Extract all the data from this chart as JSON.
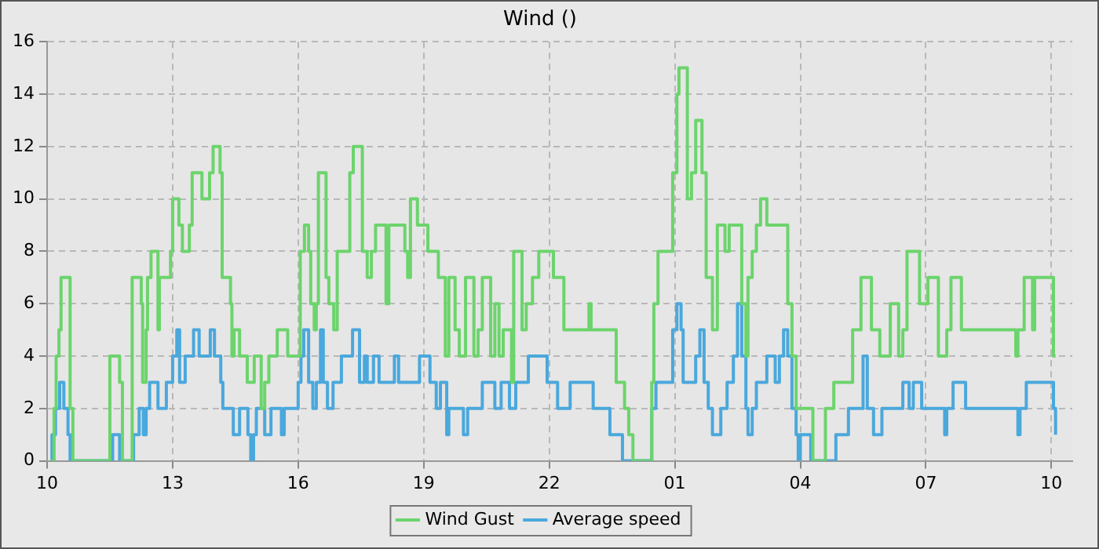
{
  "chart_data": {
    "type": "step",
    "title": "Wind ()",
    "xlim": [
      "--01-01T10:00",
      "--01-02T10:30"
    ],
    "xticks": [
      {
        "value": "--01-01T10:00",
        "label": "10"
      },
      {
        "value": "--01-01T13:00",
        "label": "13"
      },
      {
        "value": "--01-01T16:00",
        "label": "16"
      },
      {
        "value": "--01-01T19:00",
        "label": "19"
      },
      {
        "value": "--01-01T22:00",
        "label": "22"
      },
      {
        "value": "--01-02T01:00",
        "label": "01"
      },
      {
        "value": "--01-02T04:00",
        "label": "04"
      },
      {
        "value": "--01-02T07:00",
        "label": "07"
      },
      {
        "value": "--01-02T10:00",
        "label": "10"
      }
    ],
    "ylim": [
      0,
      16
    ],
    "yticks": [
      0,
      2,
      4,
      6,
      8,
      10,
      12,
      14,
      16
    ],
    "grid": true,
    "legend": "bottom",
    "marker": "none",
    "line_style": "solid",
    "series": [
      {
        "name": "Wind Gust",
        "color": "#6cd46c",
        "x": [
          "--01-01T10:05",
          "--01-01T10:10",
          "--01-01T10:13",
          "--01-01T10:17",
          "--01-01T10:20",
          "--01-01T10:33",
          "--01-01T10:37",
          "--01-01T11:30",
          "--01-01T11:44",
          "--01-01T11:48",
          "--01-01T12:02",
          "--01-01T12:15",
          "--01-01T12:17",
          "--01-01T12:22",
          "--01-01T12:24",
          "--01-01T12:29",
          "--01-01T12:39",
          "--01-01T12:41",
          "--01-01T12:57",
          "--01-01T13:00",
          "--01-01T13:09",
          "--01-01T13:14",
          "--01-01T13:24",
          "--01-01T13:28",
          "--01-01T13:42",
          "--01-01T13:53",
          "--01-01T13:58",
          "--01-01T14:08",
          "--01-01T14:11",
          "--01-01T14:23",
          "--01-01T14:25",
          "--01-01T14:28",
          "--01-01T14:36",
          "--01-01T14:47",
          "--01-01T14:57",
          "--01-01T15:07",
          "--01-01T15:12",
          "--01-01T15:18",
          "--01-01T15:30",
          "--01-01T15:45",
          "--01-01T16:03",
          "--01-01T16:09",
          "--01-01T16:15",
          "--01-01T16:18",
          "--01-01T16:23",
          "--01-01T16:26",
          "--01-01T16:29",
          "--01-01T16:40",
          "--01-01T16:44",
          "--01-01T16:51",
          "--01-01T16:56",
          "--01-01T17:14",
          "--01-01T17:19",
          "--01-01T17:32",
          "--01-01T17:39",
          "--01-01T17:45",
          "--01-01T17:51",
          "--01-01T18:06",
          "--01-01T18:10",
          "--01-01T18:33",
          "--01-01T18:37",
          "--01-01T18:41",
          "--01-01T18:51",
          "--01-01T19:06",
          "--01-01T19:21",
          "--01-01T19:31",
          "--01-01T19:36",
          "--01-01T19:45",
          "--01-01T19:51",
          "--01-01T20:00",
          "--01-01T20:12",
          "--01-01T20:18",
          "--01-01T20:24",
          "--01-01T20:36",
          "--01-01T20:42",
          "--01-01T20:48",
          "--01-01T20:54",
          "--01-01T21:06",
          "--01-01T21:09",
          "--01-01T21:21",
          "--01-01T21:27",
          "--01-01T21:36",
          "--01-01T21:45",
          "--01-01T22:06",
          "--01-01T22:21",
          "--01-01T22:57",
          "--01-01T23:00",
          "--01-01T23:36",
          "--01-01T23:48",
          "--01-01T23:54",
          "--01-02T00:00",
          "--01-02T00:27",
          "--01-02T00:30",
          "--01-02T00:36",
          "--01-02T00:57",
          "--01-02T01:03",
          "--01-02T01:06",
          "--01-02T01:18",
          "--01-02T01:24",
          "--01-02T01:30",
          "--01-02T01:39",
          "--01-02T01:45",
          "--01-02T01:54",
          "--01-02T02:01",
          "--01-02T02:12",
          "--01-02T02:18",
          "--01-02T02:36",
          "--01-02T02:42",
          "--01-02T02:45",
          "--01-02T02:51",
          "--01-02T02:57",
          "--01-02T03:03",
          "--01-02T03:12",
          "--01-02T03:42",
          "--01-02T03:48",
          "--01-02T03:54",
          "--01-02T04:18",
          "--01-02T04:36",
          "--01-02T04:48",
          "--01-02T05:15",
          "--01-02T05:27",
          "--01-02T05:42",
          "--01-02T05:54",
          "--01-02T06:09",
          "--01-02T06:21",
          "--01-02T06:27",
          "--01-02T06:33",
          "--01-02T06:51",
          "--01-02T07:03",
          "--01-02T07:18",
          "--01-02T07:30",
          "--01-02T07:36",
          "--01-02T07:51",
          "--01-02T09:09",
          "--01-02T09:12",
          "--01-02T09:21",
          "--01-02T09:33",
          "--01-02T09:36",
          "--01-02T10:03",
          "--01-02T10:06"
        ],
        "values": [
          0,
          2,
          4,
          5,
          7,
          2,
          0,
          4,
          3,
          0,
          7,
          6,
          3,
          5,
          7,
          8,
          5,
          7,
          8,
          10,
          9,
          8,
          9,
          11,
          10,
          11,
          12,
          11,
          7,
          6,
          4,
          5,
          4,
          3,
          4,
          2,
          3,
          4,
          5,
          4,
          8,
          9,
          8,
          6,
          5,
          6,
          11,
          7,
          6,
          5,
          8,
          11,
          12,
          8,
          7,
          8,
          9,
          6,
          9,
          8,
          7,
          10,
          9,
          8,
          7,
          4,
          7,
          5,
          4,
          7,
          4,
          5,
          7,
          4,
          6,
          4,
          5,
          3,
          8,
          5,
          6,
          7,
          8,
          7,
          5,
          6,
          5,
          3,
          2,
          1,
          0,
          3,
          6,
          8,
          11,
          14,
          15,
          10,
          11,
          13,
          11,
          7,
          5,
          9,
          8,
          9,
          6,
          4,
          7,
          8,
          9,
          10,
          9,
          6,
          4,
          2,
          0,
          2,
          3,
          5,
          7,
          5,
          4,
          6,
          4,
          5,
          8,
          6,
          7,
          4,
          5,
          7,
          5,
          4,
          5,
          7,
          5,
          7,
          4,
          4
        ]
      },
      {
        "name": "Average speed",
        "color": "#4aa8dc",
        "x": [
          "--01-01T10:05",
          "--01-01T10:07",
          "--01-01T10:12",
          "--01-01T10:18",
          "--01-01T10:24",
          "--01-01T10:30",
          "--01-01T10:33",
          "--01-01T11:34",
          "--01-01T11:44",
          "--01-01T12:04",
          "--01-01T12:12",
          "--01-01T12:18",
          "--01-01T12:22",
          "--01-01T12:27",
          "--01-01T12:39",
          "--01-01T12:51",
          "--01-01T13:00",
          "--01-01T13:06",
          "--01-01T13:10",
          "--01-01T13:18",
          "--01-01T13:30",
          "--01-01T13:38",
          "--01-01T13:54",
          "--01-01T14:00",
          "--01-01T14:09",
          "--01-01T14:12",
          "--01-01T14:27",
          "--01-01T14:36",
          "--01-01T14:48",
          "--01-01T14:52",
          "--01-01T14:56",
          "--01-01T15:00",
          "--01-01T15:12",
          "--01-01T15:21",
          "--01-01T15:36",
          "--01-01T15:40",
          "--01-01T16:00",
          "--01-01T16:04",
          "--01-01T16:08",
          "--01-01T16:15",
          "--01-01T16:21",
          "--01-01T16:26",
          "--01-01T16:32",
          "--01-01T16:36",
          "--01-01T16:42",
          "--01-01T16:50",
          "--01-01T17:02",
          "--01-01T17:18",
          "--01-01T17:28",
          "--01-01T17:35",
          "--01-01T17:39",
          "--01-01T17:48",
          "--01-01T17:56",
          "--01-01T18:06",
          "--01-01T18:18",
          "--01-01T18:24",
          "--01-01T18:54",
          "--01-01T19:09",
          "--01-01T19:18",
          "--01-01T19:24",
          "--01-01T19:33",
          "--01-01T19:36",
          "--01-01T19:57",
          "--01-01T20:03",
          "--01-01T20:24",
          "--01-01T20:42",
          "--01-01T20:51",
          "--01-01T21:03",
          "--01-01T21:12",
          "--01-01T21:30",
          "--01-01T21:57",
          "--01-01T22:12",
          "--01-01T22:30",
          "--01-01T23:03",
          "--01-01T23:27",
          "--01-01T23:45",
          "--01-02T00:27",
          "--01-02T00:33",
          "--01-02T00:57",
          "--01-02T01:03",
          "--01-02T01:09",
          "--01-02T01:12",
          "--01-02T01:30",
          "--01-02T01:36",
          "--01-02T01:42",
          "--01-02T01:48",
          "--01-02T01:54",
          "--01-02T02:06",
          "--01-02T02:15",
          "--01-02T02:24",
          "--01-02T02:30",
          "--01-02T02:36",
          "--01-02T02:42",
          "--01-02T02:45",
          "--01-02T02:51",
          "--01-02T02:57",
          "--01-02T03:12",
          "--01-02T03:24",
          "--01-02T03:30",
          "--01-02T03:36",
          "--01-02T03:42",
          "--01-02T03:48",
          "--01-02T03:54",
          "--01-02T03:57",
          "--01-02T04:00",
          "--01-02T04:15",
          "--01-02T04:51",
          "--01-02T05:09",
          "--01-02T05:30",
          "--01-02T05:36",
          "--01-02T05:45",
          "--01-02T05:57",
          "--01-02T06:27",
          "--01-02T06:36",
          "--01-02T06:42",
          "--01-02T06:54",
          "--01-02T07:27",
          "--01-02T07:30",
          "--01-02T07:39",
          "--01-02T07:57",
          "--01-02T09:12",
          "--01-02T09:15",
          "--01-02T09:24",
          "--01-02T10:03",
          "--01-02T10:06"
        ],
        "values": [
          0,
          1,
          2,
          3,
          2,
          1,
          0,
          1,
          0,
          1,
          2,
          1,
          2,
          3,
          2,
          3,
          4,
          5,
          3,
          4,
          5,
          4,
          5,
          4,
          3,
          2,
          1,
          2,
          1,
          0,
          1,
          2,
          1,
          2,
          1,
          2,
          3,
          4,
          5,
          3,
          2,
          3,
          5,
          3,
          2,
          3,
          4,
          5,
          3,
          4,
          3,
          4,
          3,
          3,
          4,
          3,
          4,
          3,
          2,
          3,
          1,
          2,
          1,
          2,
          3,
          2,
          3,
          2,
          3,
          4,
          3,
          2,
          3,
          2,
          1,
          0,
          2,
          3,
          5,
          6,
          5,
          3,
          4,
          5,
          3,
          2,
          1,
          2,
          3,
          4,
          6,
          4,
          2,
          1,
          2,
          3,
          4,
          3,
          4,
          5,
          4,
          2,
          1,
          0,
          1,
          0,
          1,
          2,
          4,
          2,
          1,
          2,
          3,
          2,
          3,
          2,
          1,
          2,
          3,
          2,
          1,
          2,
          3,
          2,
          1
        ]
      }
    ]
  }
}
